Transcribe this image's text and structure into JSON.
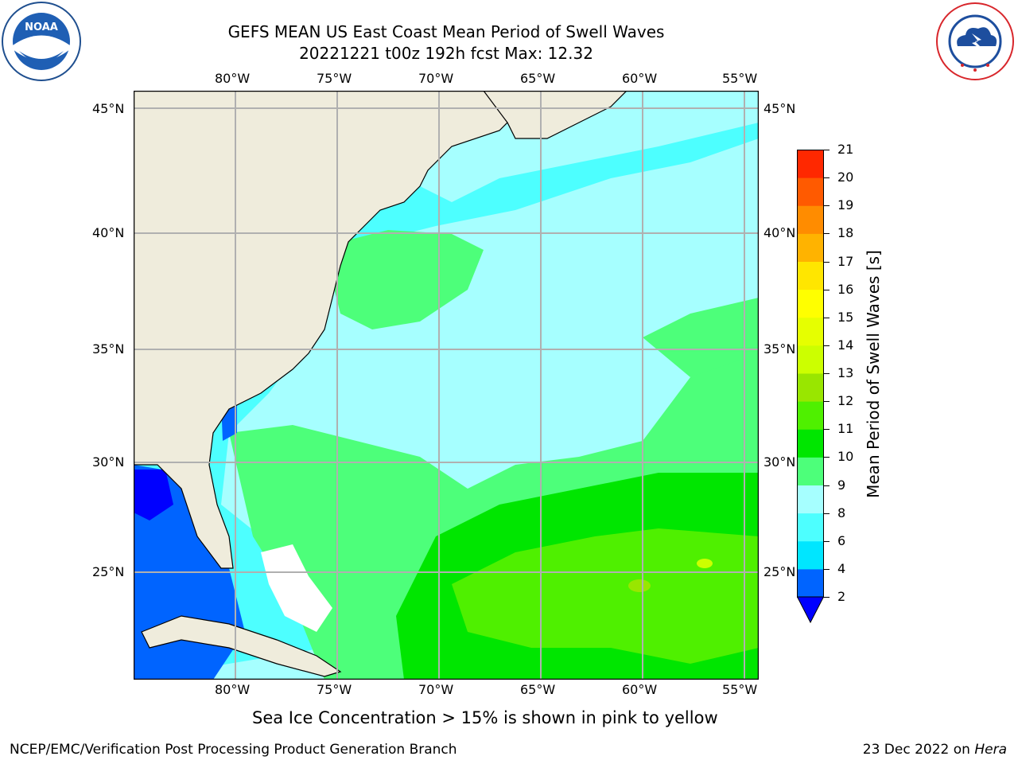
{
  "header": {
    "title_line1": "GEFS MEAN US East Coast Mean Period of Swell Waves",
    "title_line2": "20221221 t00z 192h fcst   Max: 12.32"
  },
  "logos": {
    "left": {
      "name": "NOAA",
      "text": "NOAA",
      "ring_text": "NATIONAL OCEANIC AND ATMOSPHERIC ADMINISTRATION · U.S. DEPARTMENT OF COMMERCE"
    },
    "right": {
      "name": "National Weather Service",
      "ring_text": "NATIONAL WEATHER SERVICE"
    }
  },
  "map": {
    "lon_labels": [
      "80°W",
      "75°W",
      "70°W",
      "65°W",
      "60°W",
      "55°W"
    ],
    "lat_labels": [
      "45°N",
      "40°N",
      "35°N",
      "30°N",
      "25°N"
    ],
    "colors": {
      "land": "#efecdc",
      "unknown": "#ffffff"
    }
  },
  "colorbar": {
    "label": "Mean Period of Swell Waves [s]",
    "ticks": [
      "2",
      "4",
      "6",
      "8",
      "9",
      "10",
      "11",
      "12",
      "13",
      "14",
      "15",
      "16",
      "17",
      "18",
      "19",
      "20",
      "21"
    ],
    "colors": [
      "#0064ff",
      "#00e6ff",
      "#4dffff",
      "#a6ffff",
      "#4dff7a",
      "#00e600",
      "#4ff000",
      "#99e600",
      "#ccff00",
      "#e6ff00",
      "#ffff00",
      "#ffe600",
      "#ffb300",
      "#ff8c00",
      "#ff5a00",
      "#ff2800",
      "#ff0000"
    ],
    "extend_color": "#0000ff"
  },
  "footer": {
    "note": "Sea Ice Concentration > 15% is shown in pink to yellow",
    "left": "NCEP/EMC/Verification Post Processing Product Generation Branch",
    "right_date": "23 Dec 2022 on ",
    "right_host": "Hera"
  }
}
